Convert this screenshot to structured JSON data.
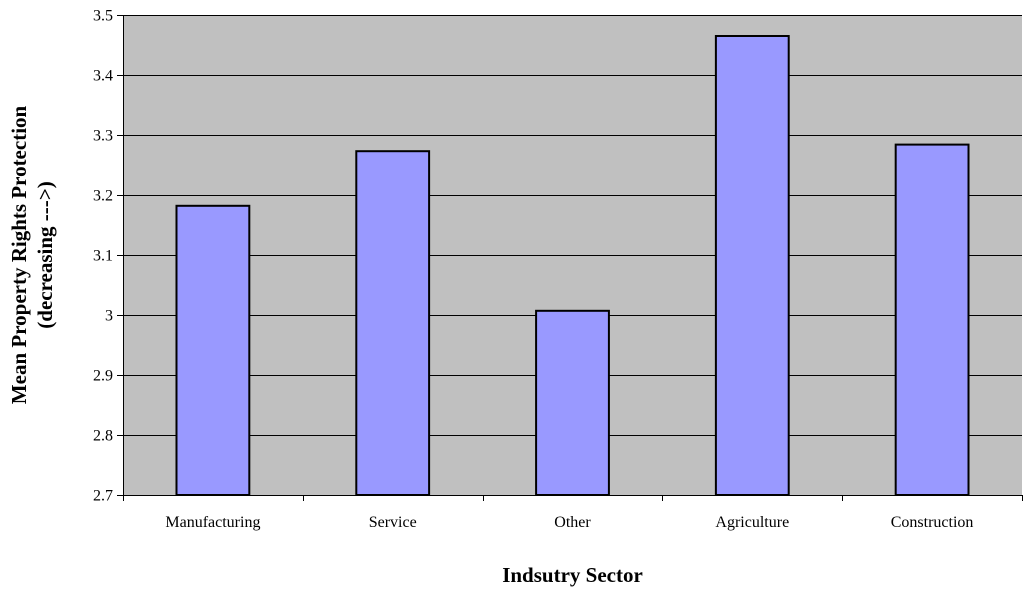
{
  "chart_data": {
    "type": "bar",
    "categories": [
      "Manufacturing",
      "Service",
      "Other",
      "Agriculture",
      "Construction"
    ],
    "values": [
      3.182,
      3.273,
      3.007,
      3.465,
      3.284
    ],
    "title": "",
    "xlabel": "Indsutry Sector",
    "ylabel_lines": [
      "Mean Property Rights Protection",
      "(decreasing --->)"
    ],
    "ylim": [
      2.7,
      3.5
    ],
    "yticks": [
      2.7,
      2.8,
      2.9,
      3,
      3.1,
      3.2,
      3.3,
      3.4,
      3.5
    ],
    "grid": true,
    "legend": "none",
    "colors": {
      "plot_background": "#c0c0c0",
      "bar_fill": "#9999ff",
      "bar_stroke": "#000000",
      "gridline": "#000000"
    }
  }
}
